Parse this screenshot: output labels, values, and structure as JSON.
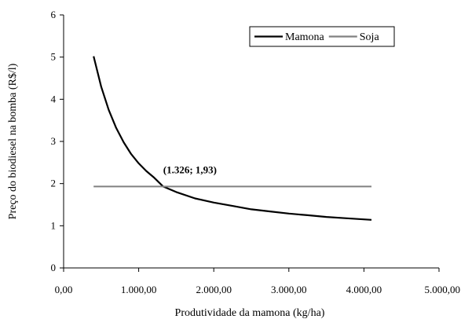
{
  "chart_data": {
    "type": "line",
    "xlabel": "Produtividade da mamona (kg/ha)",
    "ylabel": "Preço do biodiesel na bomba (R$/l)",
    "xlim": [
      0,
      5000
    ],
    "ylim": [
      0,
      6
    ],
    "x_ticks": [
      {
        "value": 0,
        "label": "0,00"
      },
      {
        "value": 1000,
        "label": "1.000,00"
      },
      {
        "value": 2000,
        "label": "2.000,00"
      },
      {
        "value": 3000,
        "label": "3.000,00"
      },
      {
        "value": 4000,
        "label": "4.000,00"
      },
      {
        "value": 5000,
        "label": "5.000,00"
      }
    ],
    "y_ticks": [
      {
        "value": 0,
        "label": "0"
      },
      {
        "value": 1,
        "label": "1"
      },
      {
        "value": 2,
        "label": "2"
      },
      {
        "value": 3,
        "label": "3"
      },
      {
        "value": 4,
        "label": "4"
      },
      {
        "value": 5,
        "label": "5"
      },
      {
        "value": 6,
        "label": "6"
      }
    ],
    "grid": false,
    "legend_position": "top-right",
    "series": [
      {
        "name": "Mamona",
        "color": "#000000",
        "x": [
          400,
          500,
          600,
          700,
          800,
          900,
          1000,
          1100,
          1200,
          1326,
          1500,
          1750,
          2000,
          2250,
          2500,
          2750,
          3000,
          3250,
          3500,
          3750,
          4100
        ],
        "y": [
          5.02,
          4.3,
          3.75,
          3.32,
          2.98,
          2.7,
          2.48,
          2.3,
          2.15,
          1.93,
          1.8,
          1.65,
          1.55,
          1.47,
          1.39,
          1.34,
          1.29,
          1.25,
          1.21,
          1.18,
          1.14
        ]
      },
      {
        "name": "Soja",
        "color": "#808080",
        "x": [
          400,
          4100
        ],
        "y": [
          1.93,
          1.93
        ]
      }
    ],
    "annotations": [
      {
        "text": "(1.326; 1,93)",
        "x": 1326,
        "y": 1.93
      }
    ]
  }
}
